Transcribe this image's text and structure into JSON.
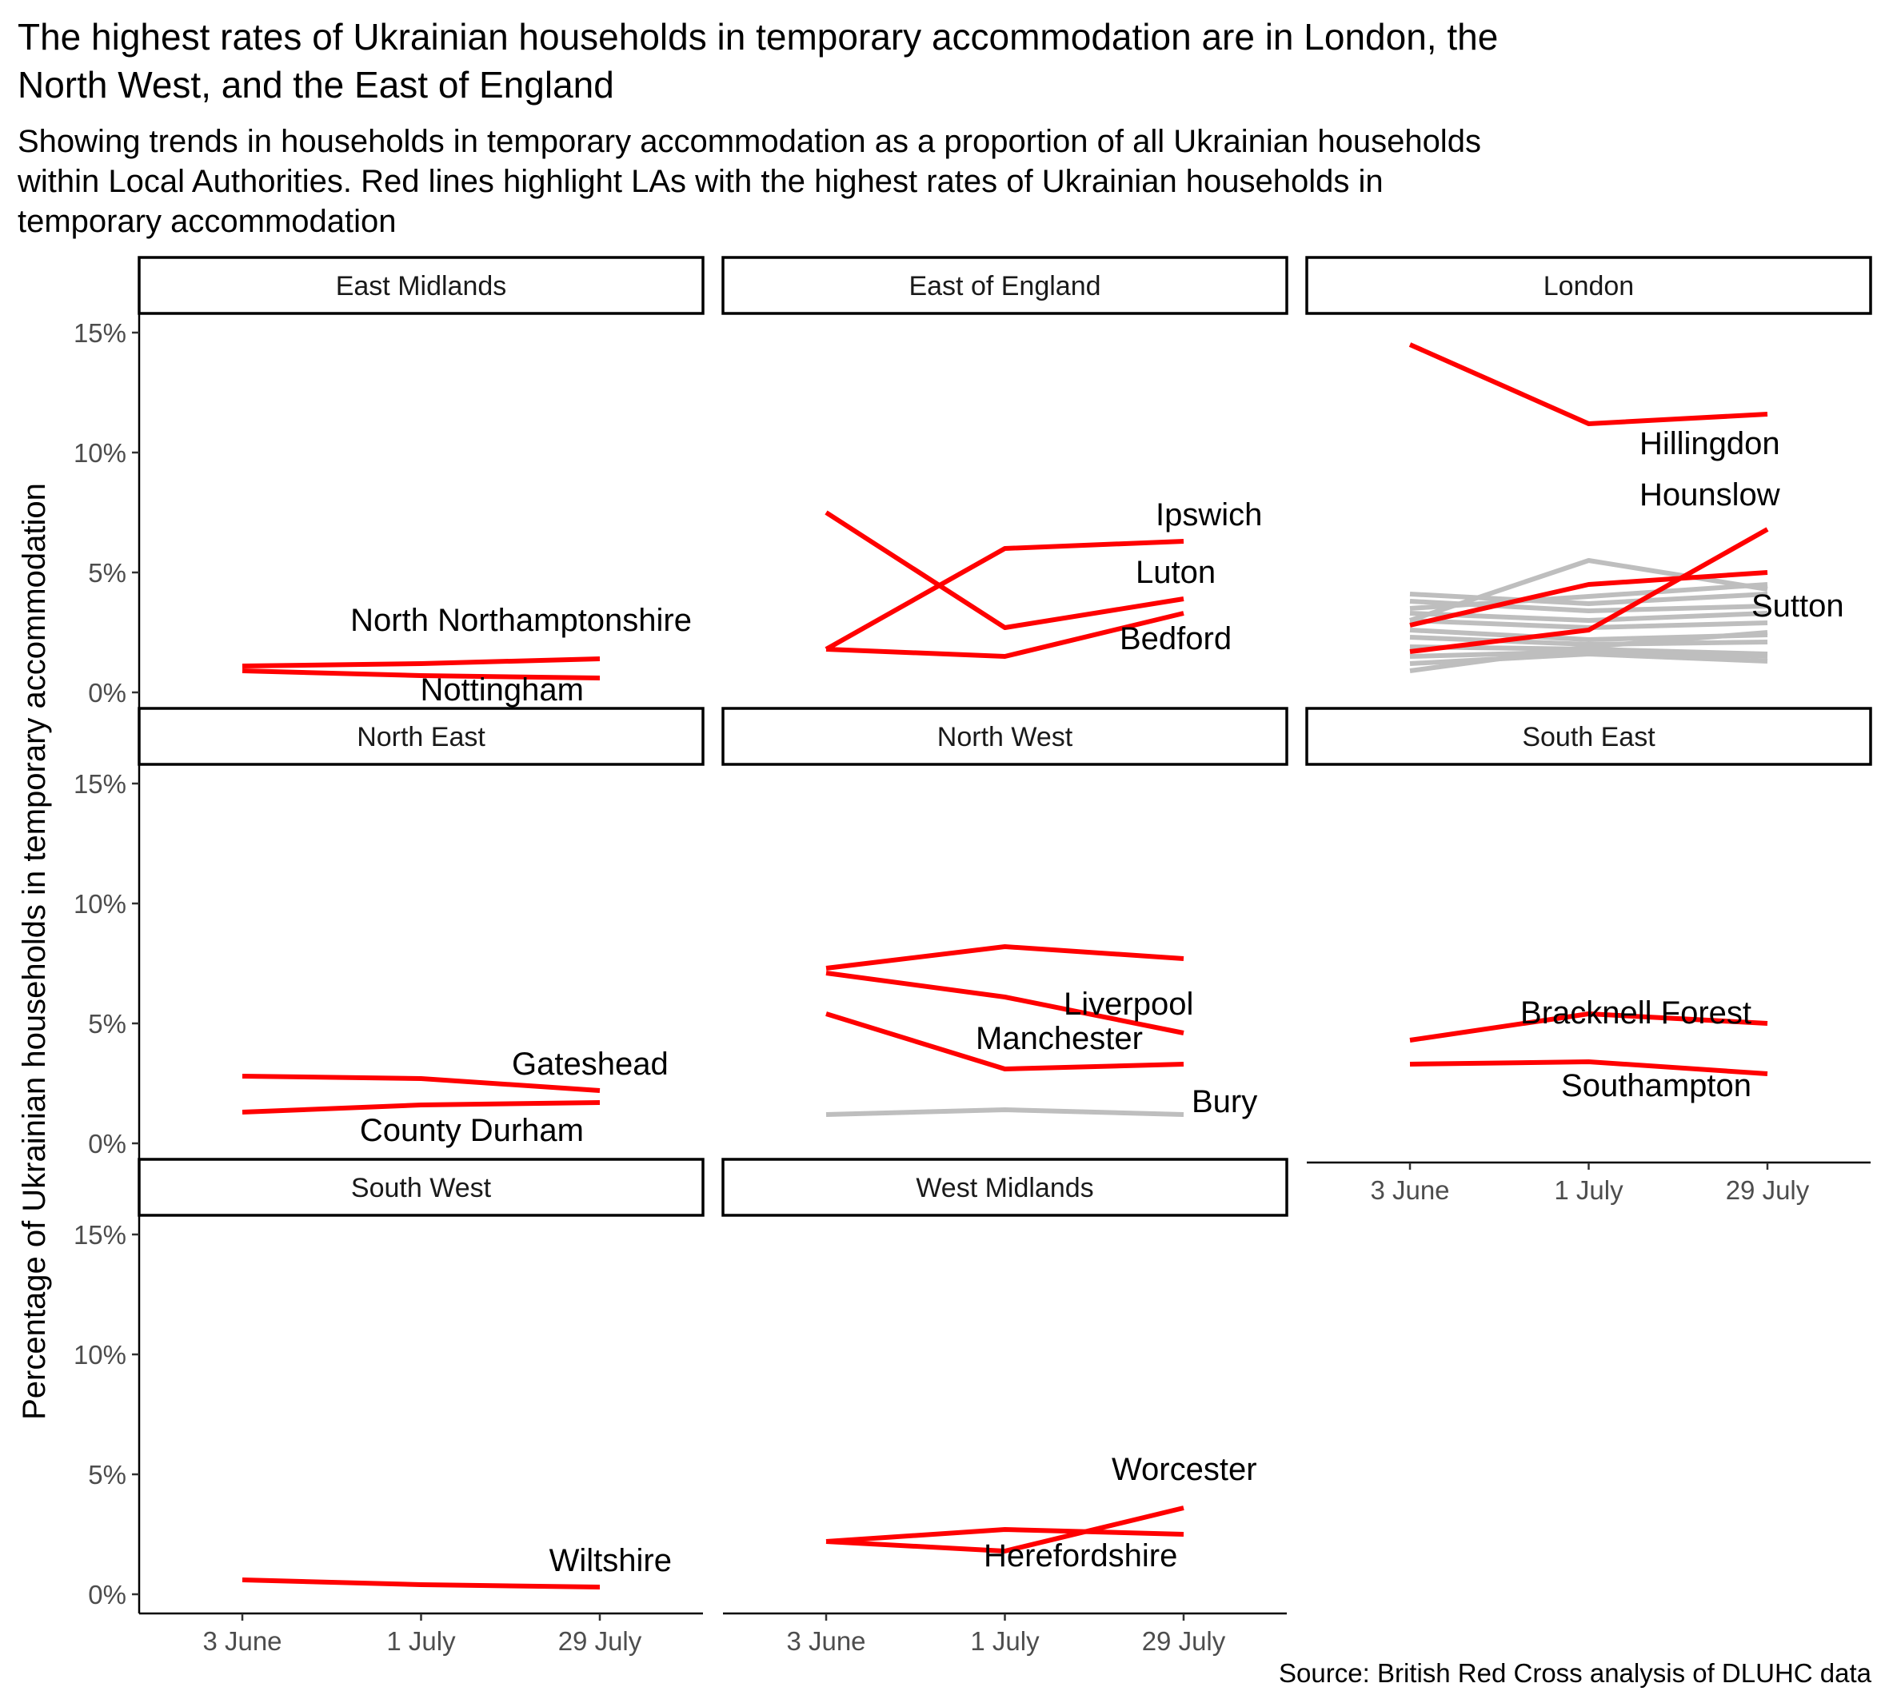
{
  "title_lines": [
    "The highest rates of Ukrainian households in temporary accommodation are in London, the",
    "North West, and the East of England"
  ],
  "subtitle_lines": [
    "Showing trends in households in temporary accommodation as a proportion of all Ukrainian households",
    "within Local Authorities. Red lines highlight LAs with the highest rates of Ukrainian households in",
    "temporary accommodation"
  ],
  "caption": "Source: British Red Cross analysis of DLUHC data",
  "colors": {
    "highlight": "#ff0000",
    "other": "#bebebe",
    "strip_border": "#000000"
  },
  "chart_data": {
    "type": "line",
    "title": "The highest rates of Ukrainian households in temporary accommodation are in London, the North West, and the East of England",
    "ylabel": "Percentage of Ukrainian households in temporary accommodation",
    "xlabel": "",
    "x_categories": [
      "3 June",
      "1 July",
      "29 July"
    ],
    "y_ticks": [
      0,
      5,
      10,
      15
    ],
    "y_tick_labels": [
      "0%",
      "5%",
      "10%",
      "15%"
    ],
    "ylim": [
      0,
      15
    ],
    "grid": false,
    "panels": [
      {
        "name": "East Midlands",
        "series": [
          {
            "name": "North Northamptonshire",
            "values": [
              1.1,
              1.2,
              1.4
            ],
            "highlight": true
          },
          {
            "name": "Nottingham",
            "values": [
              0.9,
              0.7,
              0.6
            ],
            "highlight": true
          }
        ]
      },
      {
        "name": "East of England",
        "series": [
          {
            "name": "Ipswich",
            "values": [
              1.8,
              6.0,
              6.3
            ],
            "highlight": true
          },
          {
            "name": "Luton",
            "values": [
              7.5,
              2.7,
              3.9
            ],
            "highlight": true
          },
          {
            "name": "Bedford",
            "values": [
              1.8,
              1.5,
              3.3
            ],
            "highlight": true
          }
        ]
      },
      {
        "name": "London",
        "series": [
          {
            "name": "",
            "values": [
              3.0,
              5.5,
              4.3
            ],
            "highlight": false
          },
          {
            "name": "",
            "values": [
              4.1,
              3.7,
              4.1
            ],
            "highlight": false
          },
          {
            "name": "",
            "values": [
              3.8,
              3.4,
              3.6
            ],
            "highlight": false
          },
          {
            "name": "",
            "values": [
              3.5,
              4.0,
              4.5
            ],
            "highlight": false
          },
          {
            "name": "",
            "values": [
              3.3,
              3.0,
              3.3
            ],
            "highlight": false
          },
          {
            "name": "",
            "values": [
              3.0,
              2.7,
              2.9
            ],
            "highlight": false
          },
          {
            "name": "",
            "values": [
              2.6,
              2.2,
              2.4
            ],
            "highlight": false
          },
          {
            "name": "",
            "values": [
              2.3,
              2.0,
              2.1
            ],
            "highlight": false
          },
          {
            "name": "",
            "values": [
              1.9,
              1.8,
              1.6
            ],
            "highlight": false
          },
          {
            "name": "",
            "values": [
              1.5,
              1.7,
              1.5
            ],
            "highlight": false
          },
          {
            "name": "",
            "values": [
              1.2,
              1.6,
              1.3
            ],
            "highlight": false
          },
          {
            "name": "",
            "values": [
              0.9,
              1.9,
              2.5
            ],
            "highlight": false
          },
          {
            "name": "Hillingdon",
            "values": [
              14.5,
              11.2,
              11.6
            ],
            "highlight": true
          },
          {
            "name": "Hounslow",
            "values": [
              1.7,
              2.6,
              6.8
            ],
            "highlight": true
          },
          {
            "name": "Sutton",
            "values": [
              2.8,
              4.5,
              5.0
            ],
            "highlight": true
          }
        ]
      },
      {
        "name": "North East",
        "series": [
          {
            "name": "Gateshead",
            "values": [
              2.8,
              2.7,
              2.2
            ],
            "highlight": true
          },
          {
            "name": "County Durham",
            "values": [
              1.3,
              1.6,
              1.7
            ],
            "highlight": true
          }
        ]
      },
      {
        "name": "North West",
        "series": [
          {
            "name": "",
            "values": [
              1.2,
              1.4,
              1.2
            ],
            "highlight": false
          },
          {
            "name": "Liverpool",
            "values": [
              7.3,
              8.2,
              7.7
            ],
            "highlight": true
          },
          {
            "name": "Manchester",
            "values": [
              7.1,
              6.1,
              4.6
            ],
            "highlight": true
          },
          {
            "name": "Bury",
            "values": [
              5.4,
              3.1,
              3.3
            ],
            "highlight": true
          }
        ]
      },
      {
        "name": "South East",
        "series": [
          {
            "name": "Bracknell Forest",
            "values": [
              4.3,
              5.4,
              5.0
            ],
            "highlight": true
          },
          {
            "name": "Southampton",
            "values": [
              3.3,
              3.4,
              2.9
            ],
            "highlight": true
          }
        ]
      },
      {
        "name": "South West",
        "series": [
          {
            "name": "Wiltshire",
            "values": [
              0.6,
              0.4,
              0.3
            ],
            "highlight": true
          }
        ]
      },
      {
        "name": "West Midlands",
        "series": [
          {
            "name": "Worcester",
            "values": [
              2.2,
              1.8,
              3.6
            ],
            "highlight": true
          },
          {
            "name": "Herefordshire",
            "values": [
              2.2,
              2.7,
              2.5
            ],
            "highlight": true
          }
        ]
      }
    ]
  }
}
